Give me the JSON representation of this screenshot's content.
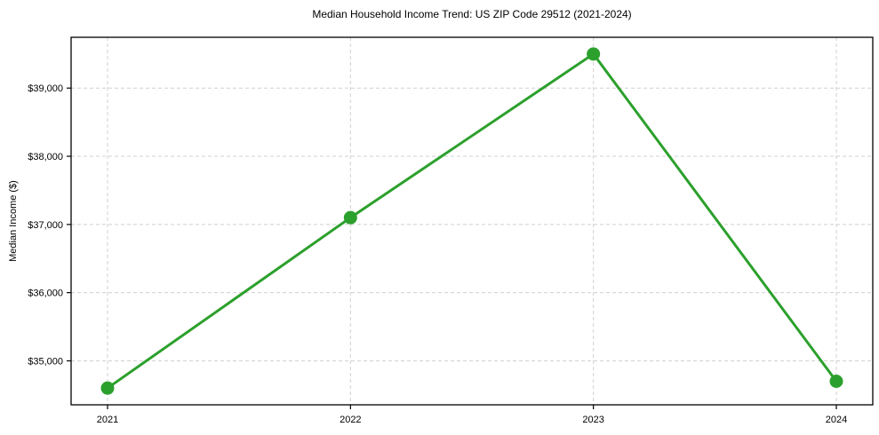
{
  "chart_data": {
    "type": "line",
    "title": "Median Household Income Trend: US ZIP Code 29512 (2021-2024)",
    "xlabel": "",
    "ylabel": "Median Income ($)",
    "categories": [
      2021,
      2022,
      2023,
      2024
    ],
    "xtick_labels": [
      "2021",
      "2022",
      "2023",
      "2024"
    ],
    "values": [
      34600,
      37100,
      39500,
      34700
    ],
    "yticks": [
      35000,
      36000,
      37000,
      38000,
      39000
    ],
    "ytick_labels": [
      "$35,000",
      "$36,000",
      "$37,000",
      "$38,000",
      "$39,000"
    ],
    "ylim": [
      34355,
      39745
    ],
    "xlim": [
      2020.85,
      2024.15
    ],
    "grid": true,
    "grid_style": "dashed",
    "legend": "none",
    "marker": "circle",
    "colors": {
      "line": "#2ca02c",
      "marker": "#2ca02c",
      "grid": "#d0d0d0",
      "spine": "#000000",
      "text": "#000000"
    }
  }
}
